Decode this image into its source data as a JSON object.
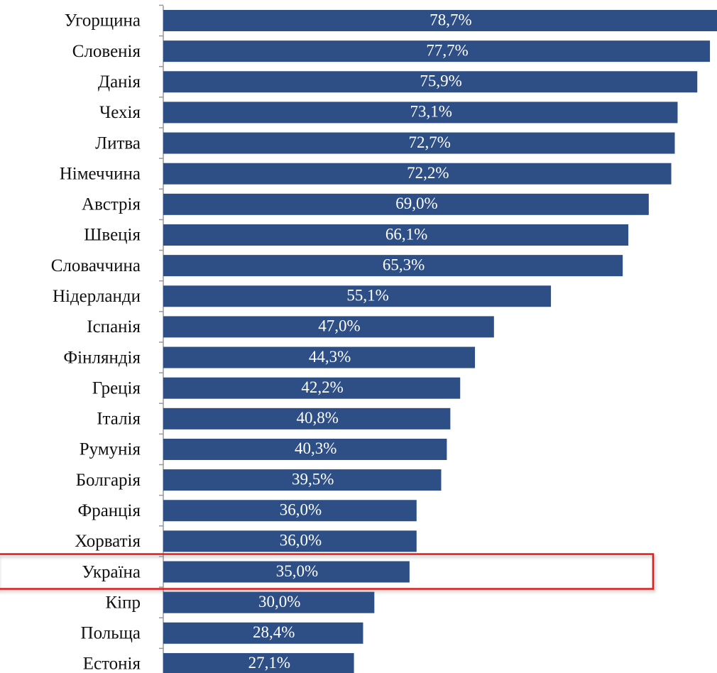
{
  "chart_data": {
    "type": "hbar",
    "categories": [
      "Угорщина",
      "Словенія",
      "Данія",
      "Чехія",
      "Литва",
      "Німеччина",
      "Австрія",
      "Швеція",
      "Словаччина",
      "Нідерланди",
      "Іспанія",
      "Фінляндія",
      "Греція",
      "Італія",
      "Румунія",
      "Болгарія",
      "Франція",
      "Хорватія",
      "Україна",
      "Кіпр",
      "Польща",
      "Естонія"
    ],
    "values": [
      78.7,
      77.7,
      75.9,
      73.1,
      72.7,
      72.2,
      69.0,
      66.1,
      65.3,
      55.1,
      47.0,
      44.3,
      42.2,
      40.8,
      40.3,
      39.5,
      36.0,
      36.0,
      35.0,
      30.0,
      28.4,
      27.1
    ],
    "value_labels": [
      "78,7%",
      "77,7%",
      "75,9%",
      "73,1%",
      "72,7%",
      "72,2%",
      "69,0%",
      "66,1%",
      "65,3%",
      "55,1%",
      "47,0%",
      "44,3%",
      "42,2%",
      "40,8%",
      "40,3%",
      "39,5%",
      "36,0%",
      "36,0%",
      "35,0%",
      "30,0%",
      "28,4%",
      "27,1%"
    ],
    "color": "#2e4f86",
    "highlight_category": "Україна",
    "highlight_color": "#e01b1b"
  }
}
